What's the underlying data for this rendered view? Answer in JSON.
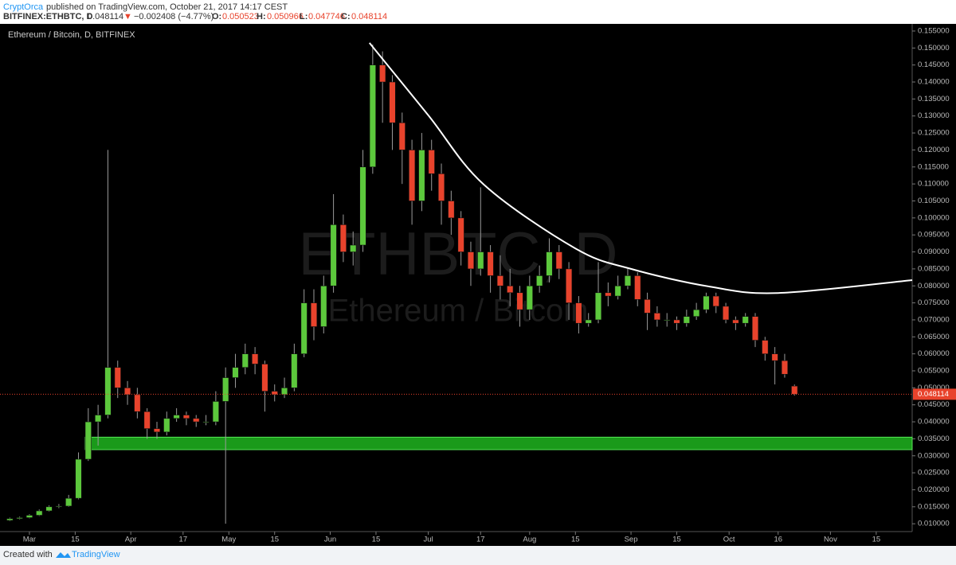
{
  "header": {
    "author": "CryptOrca",
    "published": " published on TradingView.com, October 21, 2017 14:17 CEST",
    "symbol": "BITFINEX:ETHBTC, D",
    "arrow": "▼",
    "change": "−0.002408 (−4.77%)",
    "o_label": "O:",
    "h_label": "H:",
    "l_label": "L:",
    "c_label": "C:"
  },
  "footer": {
    "created": "Created with",
    "brand": "TradingView"
  },
  "chart_data": {
    "type": "candlestick",
    "title": "Ethereum / Bitcoin, D, BITFINEX",
    "watermark": {
      "symbol": "ETHBTC, D",
      "name": "Ethereum / Bitcoin"
    },
    "up_color": "#5cc83c",
    "down_color": "#e8432c",
    "x": [
      "2017-02-23",
      "2017-02-26",
      "2017-03-01",
      "2017-03-04",
      "2017-03-07",
      "2017-03-10",
      "2017-03-13",
      "2017-03-16",
      "2017-03-19",
      "2017-03-22",
      "2017-03-25",
      "2017-03-28",
      "2017-03-31",
      "2017-04-03",
      "2017-04-06",
      "2017-04-09",
      "2017-04-12",
      "2017-04-15",
      "2017-04-18",
      "2017-04-21",
      "2017-04-24",
      "2017-04-27",
      "2017-04-30",
      "2017-05-03",
      "2017-05-06",
      "2017-05-09",
      "2017-05-12",
      "2017-05-15",
      "2017-05-18",
      "2017-05-21",
      "2017-05-24",
      "2017-05-27",
      "2017-05-30",
      "2017-06-02",
      "2017-06-05",
      "2017-06-08",
      "2017-06-11",
      "2017-06-14",
      "2017-06-17",
      "2017-06-20",
      "2017-06-23",
      "2017-06-26",
      "2017-06-29",
      "2017-07-02",
      "2017-07-05",
      "2017-07-08",
      "2017-07-11",
      "2017-07-14",
      "2017-07-17",
      "2017-07-20",
      "2017-07-23",
      "2017-07-26",
      "2017-07-29",
      "2017-08-01",
      "2017-08-04",
      "2017-08-07",
      "2017-08-10",
      "2017-08-13",
      "2017-08-16",
      "2017-08-19",
      "2017-08-22",
      "2017-08-25",
      "2017-08-28",
      "2017-08-31",
      "2017-09-03",
      "2017-09-06",
      "2017-09-09",
      "2017-09-12",
      "2017-09-15",
      "2017-09-18",
      "2017-09-21",
      "2017-09-24",
      "2017-09-27",
      "2017-09-30",
      "2017-10-03",
      "2017-10-06",
      "2017-10-09",
      "2017-10-12",
      "2017-10-15",
      "2017-10-18",
      "2017-10-21"
    ],
    "open": [
      0.011,
      0.0115,
      0.0118,
      0.0125,
      0.0138,
      0.015,
      0.0152,
      0.0175,
      0.029,
      0.04,
      0.042,
      0.056,
      0.05,
      0.048,
      0.043,
      0.038,
      0.037,
      0.041,
      0.042,
      0.041,
      0.04,
      0.04,
      0.046,
      0.053,
      0.056,
      0.06,
      0.057,
      0.049,
      0.048,
      0.05,
      0.06,
      0.075,
      0.068,
      0.08,
      0.098,
      0.09,
      0.092,
      0.115,
      0.145,
      0.14,
      0.128,
      0.12,
      0.105,
      0.12,
      0.113,
      0.105,
      0.1,
      0.09,
      0.085,
      0.09,
      0.083,
      0.08,
      0.078,
      0.073,
      0.08,
      0.083,
      0.09,
      0.085,
      0.075,
      0.069,
      0.07,
      0.078,
      0.077,
      0.08,
      0.083,
      0.076,
      0.072,
      0.07,
      0.07,
      0.069,
      0.071,
      0.073,
      0.077,
      0.074,
      0.07,
      0.069,
      0.071,
      0.064,
      0.06,
      0.058,
      0.050523
    ],
    "high": [
      0.0118,
      0.0121,
      0.0128,
      0.0142,
      0.0154,
      0.0158,
      0.0185,
      0.031,
      0.044,
      0.045,
      0.12,
      0.058,
      0.052,
      0.05,
      0.044,
      0.04,
      0.043,
      0.044,
      0.043,
      0.042,
      0.042,
      0.049,
      0.056,
      0.06,
      0.063,
      0.062,
      0.058,
      0.051,
      0.053,
      0.063,
      0.079,
      0.079,
      0.083,
      0.107,
      0.101,
      0.096,
      0.12,
      0.151,
      0.149,
      0.142,
      0.131,
      0.123,
      0.125,
      0.123,
      0.116,
      0.108,
      0.102,
      0.093,
      0.109,
      0.092,
      0.089,
      0.085,
      0.08,
      0.083,
      0.086,
      0.094,
      0.092,
      0.087,
      0.077,
      0.072,
      0.087,
      0.081,
      0.083,
      0.085,
      0.084,
      0.078,
      0.074,
      0.072,
      0.071,
      0.073,
      0.075,
      0.078,
      0.078,
      0.075,
      0.071,
      0.072,
      0.072,
      0.065,
      0.062,
      0.06,
      0.050966
    ],
    "low": [
      0.0108,
      0.0113,
      0.0116,
      0.0123,
      0.0136,
      0.0146,
      0.015,
      0.0172,
      0.0285,
      0.033,
      0.041,
      0.047,
      0.045,
      0.041,
      0.035,
      0.035,
      0.036,
      0.04,
      0.039,
      0.0385,
      0.039,
      0.039,
      0.01,
      0.05,
      0.054,
      0.054,
      0.043,
      0.046,
      0.047,
      0.049,
      0.059,
      0.064,
      0.066,
      0.078,
      0.087,
      0.086,
      0.09,
      0.113,
      0.128,
      0.12,
      0.11,
      0.098,
      0.102,
      0.108,
      0.098,
      0.095,
      0.086,
      0.08,
      0.083,
      0.078,
      0.076,
      0.074,
      0.068,
      0.07,
      0.078,
      0.081,
      0.082,
      0.07,
      0.066,
      0.068,
      0.069,
      0.074,
      0.076,
      0.079,
      0.074,
      0.067,
      0.068,
      0.068,
      0.067,
      0.068,
      0.07,
      0.072,
      0.072,
      0.069,
      0.067,
      0.068,
      0.062,
      0.058,
      0.051,
      0.053,
      0.047746
    ],
    "close": [
      0.0115,
      0.0118,
      0.0125,
      0.0138,
      0.015,
      0.0152,
      0.0175,
      0.029,
      0.04,
      0.042,
      0.056,
      0.05,
      0.048,
      0.043,
      0.038,
      0.037,
      0.041,
      0.042,
      0.041,
      0.04,
      0.04,
      0.046,
      0.053,
      0.056,
      0.06,
      0.057,
      0.049,
      0.048,
      0.05,
      0.06,
      0.075,
      0.068,
      0.08,
      0.098,
      0.09,
      0.092,
      0.115,
      0.145,
      0.14,
      0.128,
      0.12,
      0.105,
      0.12,
      0.113,
      0.105,
      0.1,
      0.09,
      0.085,
      0.09,
      0.083,
      0.08,
      0.078,
      0.073,
      0.08,
      0.083,
      0.09,
      0.085,
      0.075,
      0.069,
      0.07,
      0.078,
      0.077,
      0.08,
      0.083,
      0.076,
      0.072,
      0.07,
      0.07,
      0.069,
      0.071,
      0.073,
      0.077,
      0.074,
      0.07,
      0.069,
      0.071,
      0.064,
      0.06,
      0.058,
      0.054,
      0.048114
    ],
    "support_zone": {
      "start": "2017-03-18",
      "low": 0.0318,
      "high": 0.0355,
      "color": "#1fb51f"
    },
    "resistance_curve": {
      "x": [
        "2017-06-13",
        "2017-07-01",
        "2017-07-18",
        "2017-08-15",
        "2017-09-01",
        "2017-09-25",
        "2017-10-16",
        "2017-11-26"
      ],
      "y": [
        0.1515,
        0.1302,
        0.1098,
        0.091,
        0.085,
        0.0798,
        0.0779,
        0.0817
      ],
      "color": "#ffffff"
    },
    "xlim": [
      "2017-02-20",
      "2017-11-26"
    ],
    "xticks": [
      {
        "value": "2017-03-01",
        "label": "Mar"
      },
      {
        "value": "2017-03-15",
        "label": "15"
      },
      {
        "value": "2017-04-01",
        "label": "Apr"
      },
      {
        "value": "2017-04-17",
        "label": "17"
      },
      {
        "value": "2017-05-01",
        "label": "May"
      },
      {
        "value": "2017-05-15",
        "label": "15"
      },
      {
        "value": "2017-06-01",
        "label": "Jun"
      },
      {
        "value": "2017-06-15",
        "label": "15"
      },
      {
        "value": "2017-07-01",
        "label": "Jul"
      },
      {
        "value": "2017-07-17",
        "label": "17"
      },
      {
        "value": "2017-08-01",
        "label": "Aug"
      },
      {
        "value": "2017-08-15",
        "label": "15"
      },
      {
        "value": "2017-09-01",
        "label": "Sep"
      },
      {
        "value": "2017-09-15",
        "label": "15"
      },
      {
        "value": "2017-10-01",
        "label": "Oct"
      },
      {
        "value": "2017-10-16",
        "label": "16"
      },
      {
        "value": "2017-11-01",
        "label": "Nov"
      },
      {
        "value": "2017-11-15",
        "label": "15"
      }
    ],
    "ylim": [
      0.0077,
      0.1571
    ],
    "yticks": [
      {
        "value": 0.01,
        "label": "0.010000"
      },
      {
        "value": 0.015,
        "label": "0.015000"
      },
      {
        "value": 0.02,
        "label": "0.020000"
      },
      {
        "value": 0.025,
        "label": "0.025000"
      },
      {
        "value": 0.03,
        "label": "0.030000"
      },
      {
        "value": 0.035,
        "label": "0.035000"
      },
      {
        "value": 0.04,
        "label": "0.040000"
      },
      {
        "value": 0.045,
        "label": "0.045000"
      },
      {
        "value": 0.05,
        "label": "0.050000"
      },
      {
        "value": 0.055,
        "label": "0.055000"
      },
      {
        "value": 0.06,
        "label": "0.060000"
      },
      {
        "value": 0.065,
        "label": "0.065000"
      },
      {
        "value": 0.07,
        "label": "0.070000"
      },
      {
        "value": 0.075,
        "label": "0.075000"
      },
      {
        "value": 0.08,
        "label": "0.080000"
      },
      {
        "value": 0.085,
        "label": "0.085000"
      },
      {
        "value": 0.09,
        "label": "0.090000"
      },
      {
        "value": 0.095,
        "label": "0.095000"
      },
      {
        "value": 0.1,
        "label": "0.100000"
      },
      {
        "value": 0.105,
        "label": "0.105000"
      },
      {
        "value": 0.11,
        "label": "0.110000"
      },
      {
        "value": 0.115,
        "label": "0.115000"
      },
      {
        "value": 0.12,
        "label": "0.120000"
      },
      {
        "value": 0.125,
        "label": "0.125000"
      },
      {
        "value": 0.13,
        "label": "0.130000"
      },
      {
        "value": 0.135,
        "label": "0.135000"
      },
      {
        "value": 0.14,
        "label": "0.140000"
      },
      {
        "value": 0.145,
        "label": "0.145000"
      },
      {
        "value": 0.15,
        "label": "0.150000"
      },
      {
        "value": 0.155,
        "label": "0.155000"
      }
    ],
    "grid": false
  }
}
